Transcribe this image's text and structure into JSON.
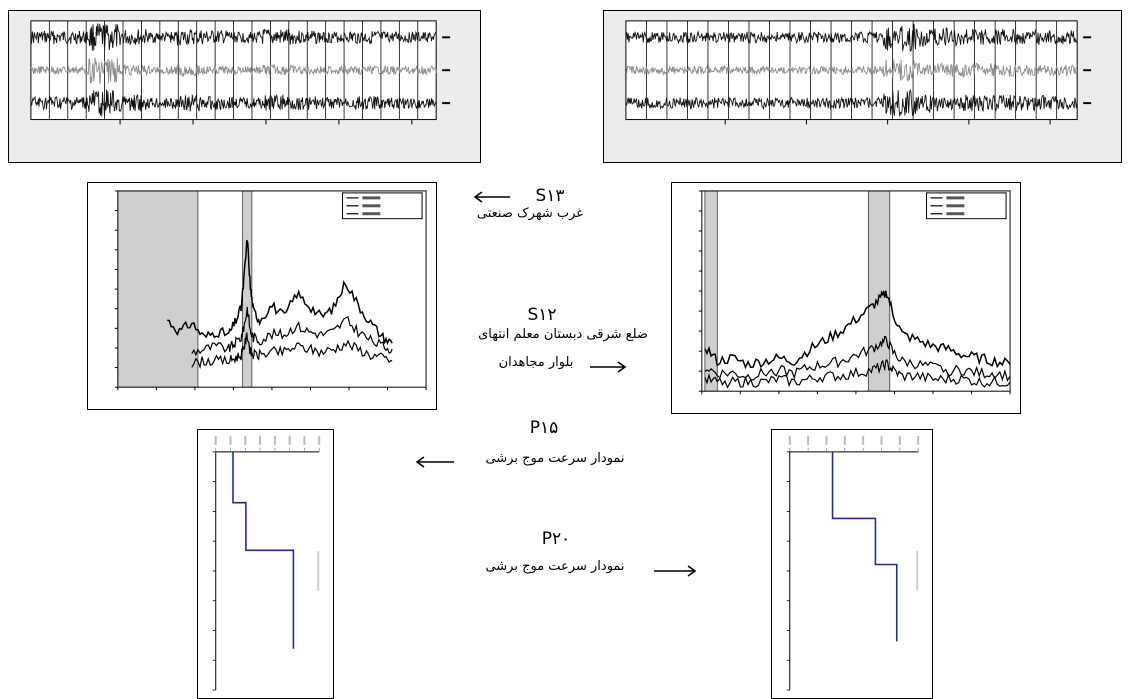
{
  "colors": {
    "profile_line": "#1f2d8a",
    "shade": "#cfcfcf",
    "trace_dark": "#111111",
    "trace_gray": "#8c8c8c",
    "panel_gray": "#e8e8e8"
  },
  "labels": {
    "s13_code": "S۱۳",
    "s13_name": "غرب شهرک صنعتی",
    "s12_code": "S۱۲",
    "s12_line1": "ضلع شرقی دبستان معلم انتهای",
    "s12_line2": "بلوار مجاهدان",
    "p15_code": "P۱۵",
    "p15_name": "نمودار سرعت موج برشی",
    "p20_code": "P۲۰",
    "p20_name": "نمودار سرعت موج برشی"
  },
  "icons": {
    "arrow_left": "arrow-left-icon",
    "arrow_right": "arrow-right-icon"
  },
  "chart_data": [
    {
      "type": "line",
      "panel": "seismogram-left",
      "series": [
        {
          "values": [
            0.5,
            0.5,
            1.0,
            0.6,
            0.4,
            0.6,
            0.5,
            0.4,
            0.6,
            0.5,
            0.4,
            0.5,
            0.4,
            0.4
          ]
        },
        {
          "values": [
            0.3,
            0.3,
            1.0,
            0.4,
            0.3,
            0.4,
            0.3,
            0.3,
            0.4,
            0.3,
            0.3,
            0.3,
            0.3,
            0.3
          ]
        },
        {
          "values": [
            0.5,
            0.5,
            1.0,
            0.6,
            0.4,
            0.6,
            0.5,
            0.4,
            0.6,
            0.5,
            0.4,
            0.5,
            0.4,
            0.4
          ]
        }
      ]
    },
    {
      "type": "line",
      "panel": "seismogram-right",
      "series": [
        {
          "values": [
            0.4,
            0.4,
            0.4,
            0.4,
            0.4,
            0.4,
            0.4,
            0.4,
            1.0,
            0.7,
            0.6,
            0.6,
            0.6,
            0.5
          ]
        },
        {
          "values": [
            0.3,
            0.3,
            0.3,
            0.3,
            0.3,
            0.3,
            0.3,
            0.3,
            0.8,
            0.5,
            0.5,
            0.5,
            0.4,
            0.4
          ]
        },
        {
          "values": [
            0.4,
            0.4,
            0.4,
            0.4,
            0.4,
            0.4,
            0.4,
            0.4,
            1.0,
            0.7,
            0.6,
            0.6,
            0.6,
            0.5
          ]
        }
      ]
    },
    {
      "type": "line",
      "panel": "hv-left",
      "xlim": [
        0,
        100
      ],
      "shade": [
        [
          0,
          26
        ],
        [
          40.5,
          43.5
        ]
      ],
      "series": [
        {
          "x": [
            16,
            20,
            24,
            28,
            32,
            36,
            38,
            40,
            41,
            42,
            43,
            44,
            46,
            50,
            54,
            58,
            62,
            66,
            70,
            74,
            78,
            82,
            86,
            89
          ],
          "values": [
            3.1,
            2.7,
            3.0,
            2.5,
            2.7,
            2.6,
            3.0,
            3.5,
            4.6,
            5.9,
            4.2,
            3.4,
            3.1,
            3.6,
            3.2,
            4.0,
            3.6,
            3.2,
            3.5,
            4.4,
            3.6,
            3.0,
            2.5,
            2.3
          ]
        },
        {
          "x": [
            24,
            28,
            32,
            36,
            38,
            40,
            41,
            42,
            43,
            44,
            46,
            50,
            54,
            58,
            62,
            66,
            70,
            74,
            78,
            82,
            86,
            89
          ],
          "values": [
            2.0,
            2.1,
            2.2,
            2.1,
            2.3,
            2.5,
            2.9,
            3.5,
            2.7,
            2.5,
            2.4,
            2.6,
            2.6,
            2.9,
            2.7,
            2.6,
            2.7,
            3.1,
            2.7,
            2.4,
            2.2,
            2.1
          ]
        },
        {
          "x": [
            24,
            28,
            32,
            36,
            38,
            40,
            41,
            42,
            43,
            44,
            46,
            50,
            54,
            58,
            62,
            66,
            70,
            74,
            78,
            82,
            86,
            89
          ],
          "values": [
            1.6,
            1.7,
            1.7,
            1.7,
            1.8,
            1.9,
            2.2,
            2.6,
            2.0,
            1.9,
            1.9,
            2.0,
            2.0,
            2.2,
            2.1,
            2.0,
            2.1,
            2.3,
            2.1,
            1.9,
            1.8,
            1.7
          ]
        }
      ]
    },
    {
      "type": "line",
      "panel": "hv-right",
      "xlim": [
        0,
        100
      ],
      "shade": [
        [
          1,
          5
        ],
        [
          54,
          61
        ]
      ],
      "series": [
        {
          "x": [
            1,
            5,
            10,
            15,
            20,
            25,
            30,
            35,
            40,
            45,
            50,
            55,
            58,
            60,
            62,
            65,
            70,
            75,
            80,
            85,
            90,
            95,
            100
          ],
          "values": [
            2.3,
            1.8,
            1.9,
            1.7,
            1.8,
            1.9,
            1.8,
            2.2,
            2.5,
            2.8,
            3.2,
            3.6,
            3.9,
            4.1,
            3.4,
            2.7,
            2.5,
            2.3,
            2.2,
            2.0,
            1.9,
            1.8,
            1.7
          ]
        },
        {
          "x": [
            1,
            5,
            10,
            15,
            20,
            25,
            30,
            35,
            40,
            45,
            50,
            55,
            58,
            60,
            62,
            65,
            70,
            75,
            80,
            85,
            90,
            95,
            100
          ],
          "values": [
            1.6,
            1.4,
            1.4,
            1.3,
            1.4,
            1.5,
            1.4,
            1.6,
            1.7,
            1.8,
            2.0,
            2.2,
            2.4,
            2.5,
            2.1,
            1.8,
            1.7,
            1.6,
            1.5,
            1.5,
            1.4,
            1.4,
            1.3
          ]
        },
        {
          "x": [
            1,
            5,
            10,
            15,
            20,
            25,
            30,
            35,
            40,
            45,
            50,
            55,
            58,
            60,
            62,
            65,
            70,
            75,
            80,
            85,
            90,
            95,
            100
          ],
          "values": [
            1.2,
            1.1,
            1.1,
            1.1,
            1.1,
            1.2,
            1.1,
            1.2,
            1.3,
            1.3,
            1.4,
            1.5,
            1.6,
            1.7,
            1.5,
            1.3,
            1.3,
            1.2,
            1.2,
            1.2,
            1.1,
            1.1,
            1.1
          ]
        }
      ]
    },
    {
      "type": "line",
      "panel": "profile-left",
      "ylim": [
        0,
        75
      ],
      "xlim": [
        0,
        120
      ],
      "series": [
        {
          "x": [
            20,
            20,
            35,
            35,
            90,
            90
          ],
          "values": [
            0,
            16,
            16,
            31,
            31,
            62
          ]
        }
      ]
    },
    {
      "type": "line",
      "panel": "profile-right",
      "ylim": [
        0,
        93
      ],
      "xlim": [
        0,
        120
      ],
      "series": [
        {
          "x": [
            40,
            40,
            80,
            80,
            100,
            100
          ],
          "values": [
            0,
            26,
            26,
            44,
            44,
            74
          ]
        }
      ]
    }
  ]
}
